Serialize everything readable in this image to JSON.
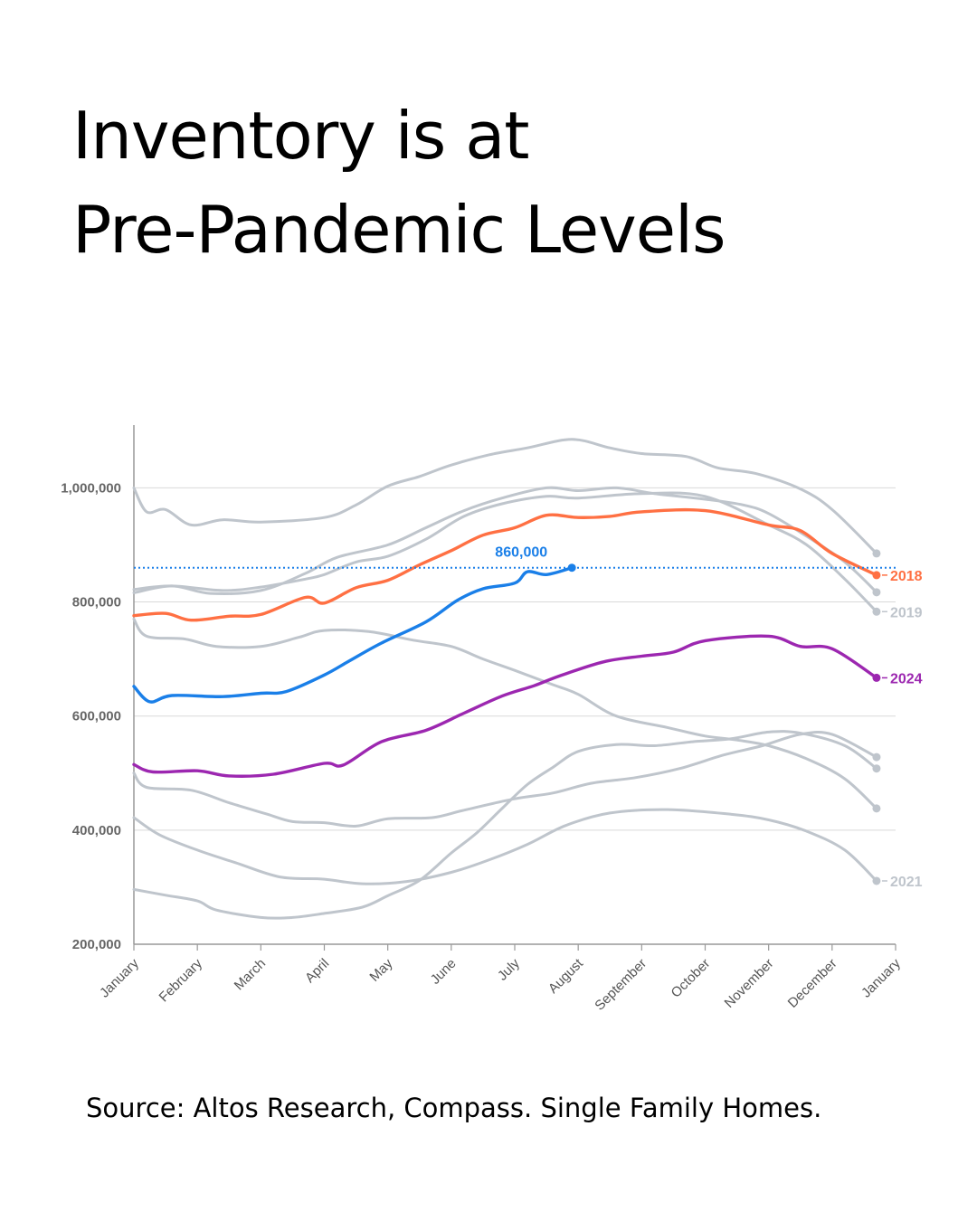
{
  "title_line1": "Inventory is at",
  "title_line2": "Pre-Pandemic Levels",
  "source": "Source: Altos Research, Compass. Single Family Homes.",
  "chart_data": {
    "type": "line",
    "x_label_months": [
      "January",
      "February",
      "March",
      "April",
      "May",
      "June",
      "July",
      "August",
      "September",
      "October",
      "November",
      "December",
      "January"
    ],
    "ylim": [
      200000,
      1110000
    ],
    "y_ticks": [
      200000,
      400000,
      600000,
      800000,
      1000000
    ],
    "y_tick_labels": [
      "200,000",
      "400,000",
      "600,000",
      "800,000",
      "1,000,000"
    ],
    "grid": true,
    "reference_line": {
      "value": 860000,
      "label": "860,000",
      "color": "#1a7fe8",
      "style": "dotted"
    },
    "colors": {
      "highlight_2018": "#ff7043",
      "highlight_2024": "#9c27b0",
      "current": "#1a7fe8",
      "other": "#bfc5cc"
    },
    "series": [
      {
        "name": "",
        "color": "#1a7fe8",
        "role": "current",
        "points": [
          [
            0,
            652000
          ],
          [
            0.25,
            625000
          ],
          [
            0.6,
            636000
          ],
          [
            1.4,
            634000
          ],
          [
            2,
            640000
          ],
          [
            2.4,
            643000
          ],
          [
            3,
            672000
          ],
          [
            3.4,
            697000
          ],
          [
            3.9,
            728000
          ],
          [
            4.6,
            765000
          ],
          [
            5.1,
            803000
          ],
          [
            5.5,
            823000
          ],
          [
            6,
            833000
          ],
          [
            6.2,
            853000
          ],
          [
            6.5,
            848000
          ],
          [
            6.9,
            860000
          ]
        ]
      },
      {
        "name": "2018",
        "color": "#ff7043",
        "role": "highlight",
        "label_visible": true,
        "points": [
          [
            0,
            776000
          ],
          [
            0.5,
            780000
          ],
          [
            0.9,
            768000
          ],
          [
            1.5,
            775000
          ],
          [
            2,
            778000
          ],
          [
            2.7,
            808000
          ],
          [
            3,
            798000
          ],
          [
            3.5,
            825000
          ],
          [
            4,
            838000
          ],
          [
            4.5,
            865000
          ],
          [
            5,
            890000
          ],
          [
            5.5,
            917000
          ],
          [
            6,
            930000
          ],
          [
            6.5,
            952000
          ],
          [
            7,
            948000
          ],
          [
            7.5,
            950000
          ],
          [
            8,
            958000
          ],
          [
            9,
            960000
          ],
          [
            10,
            935000
          ],
          [
            10.5,
            925000
          ],
          [
            11,
            885000
          ],
          [
            11.7,
            847000
          ]
        ]
      },
      {
        "name": "2024",
        "color": "#9c27b0",
        "role": "highlight",
        "label_visible": true,
        "points": [
          [
            0,
            515000
          ],
          [
            0.3,
            502000
          ],
          [
            1,
            504000
          ],
          [
            1.5,
            495000
          ],
          [
            2.2,
            498000
          ],
          [
            3,
            517000
          ],
          [
            3.3,
            514000
          ],
          [
            3.9,
            555000
          ],
          [
            4.6,
            575000
          ],
          [
            5.2,
            605000
          ],
          [
            5.8,
            635000
          ],
          [
            6.3,
            653000
          ],
          [
            6.7,
            670000
          ],
          [
            7.4,
            695000
          ],
          [
            8,
            705000
          ],
          [
            8.5,
            712000
          ],
          [
            9,
            732000
          ],
          [
            10,
            740000
          ],
          [
            10.5,
            722000
          ],
          [
            11,
            718000
          ],
          [
            11.7,
            667000
          ]
        ]
      },
      {
        "name": "2019",
        "color": "#bfc5cc",
        "role": "other",
        "label_visible": true,
        "points": [
          [
            0,
            822000
          ],
          [
            0.6,
            828000
          ],
          [
            1.4,
            820000
          ],
          [
            2,
            826000
          ],
          [
            2.7,
            840000
          ],
          [
            3,
            848000
          ],
          [
            3.5,
            870000
          ],
          [
            4,
            880000
          ],
          [
            4.6,
            910000
          ],
          [
            5.2,
            950000
          ],
          [
            5.8,
            972000
          ],
          [
            6.5,
            985000
          ],
          [
            7,
            982000
          ],
          [
            8,
            990000
          ],
          [
            9,
            985000
          ],
          [
            10,
            935000
          ],
          [
            10.6,
            900000
          ],
          [
            11.2,
            840000
          ],
          [
            11.7,
            783000
          ]
        ]
      },
      {
        "name": "2021",
        "color": "#bfc5cc",
        "role": "other",
        "label_visible": true,
        "points": [
          [
            0,
            422000
          ],
          [
            0.4,
            392000
          ],
          [
            1,
            365000
          ],
          [
            1.6,
            343000
          ],
          [
            2.3,
            318000
          ],
          [
            3,
            314000
          ],
          [
            3.6,
            306000
          ],
          [
            4.3,
            310000
          ],
          [
            5,
            326000
          ],
          [
            5.6,
            348000
          ],
          [
            6.2,
            375000
          ],
          [
            6.8,
            408000
          ],
          [
            7.5,
            430000
          ],
          [
            8.4,
            436000
          ],
          [
            9.4,
            428000
          ],
          [
            10,
            418000
          ],
          [
            10.6,
            398000
          ],
          [
            11.2,
            365000
          ],
          [
            11.7,
            311000
          ]
        ]
      },
      {
        "name": "",
        "color": "#bfc5cc",
        "role": "other",
        "points": [
          [
            0,
            1000000
          ],
          [
            0.2,
            958000
          ],
          [
            0.5,
            962000
          ],
          [
            0.9,
            935000
          ],
          [
            1.4,
            944000
          ],
          [
            2,
            940000
          ],
          [
            3,
            948000
          ],
          [
            3.5,
            970000
          ],
          [
            4,
            1003000
          ],
          [
            4.5,
            1020000
          ],
          [
            5,
            1040000
          ],
          [
            5.6,
            1058000
          ],
          [
            6.2,
            1070000
          ],
          [
            6.9,
            1085000
          ],
          [
            7.5,
            1070000
          ],
          [
            8,
            1060000
          ],
          [
            8.7,
            1055000
          ],
          [
            9.2,
            1035000
          ],
          [
            9.8,
            1025000
          ],
          [
            10.5,
            998000
          ],
          [
            11,
            962000
          ],
          [
            11.7,
            885000
          ]
        ]
      },
      {
        "name": "",
        "color": "#bfc5cc",
        "role": "other",
        "points": [
          [
            0,
            816000
          ],
          [
            0.6,
            828000
          ],
          [
            1.2,
            815000
          ],
          [
            2,
            820000
          ],
          [
            2.7,
            850000
          ],
          [
            3.2,
            878000
          ],
          [
            4,
            900000
          ],
          [
            4.6,
            930000
          ],
          [
            5.2,
            960000
          ],
          [
            5.8,
            982000
          ],
          [
            6.5,
            1000000
          ],
          [
            7,
            995000
          ],
          [
            7.6,
            1000000
          ],
          [
            8.2,
            990000
          ],
          [
            9,
            980000
          ],
          [
            9.6,
            970000
          ],
          [
            10,
            955000
          ],
          [
            10.6,
            915000
          ],
          [
            11.2,
            870000
          ],
          [
            11.7,
            817000
          ]
        ]
      },
      {
        "name": "",
        "color": "#bfc5cc",
        "role": "other",
        "points": [
          [
            0,
            770000
          ],
          [
            0.2,
            740000
          ],
          [
            0.8,
            735000
          ],
          [
            1.3,
            722000
          ],
          [
            2,
            722000
          ],
          [
            2.6,
            738000
          ],
          [
            3,
            750000
          ],
          [
            3.7,
            748000
          ],
          [
            4.4,
            733000
          ],
          [
            5,
            722000
          ],
          [
            5.5,
            700000
          ],
          [
            6,
            680000
          ],
          [
            6.6,
            655000
          ],
          [
            7,
            638000
          ],
          [
            7.6,
            600000
          ],
          [
            8.4,
            580000
          ],
          [
            9,
            565000
          ],
          [
            9.5,
            558000
          ],
          [
            10,
            548000
          ],
          [
            10.6,
            525000
          ],
          [
            11.2,
            490000
          ],
          [
            11.7,
            438000
          ]
        ]
      },
      {
        "name": "",
        "color": "#bfc5cc",
        "role": "other",
        "points": [
          [
            0,
            500000
          ],
          [
            0.2,
            475000
          ],
          [
            0.9,
            470000
          ],
          [
            1.5,
            448000
          ],
          [
            2.1,
            428000
          ],
          [
            2.5,
            415000
          ],
          [
            3,
            413000
          ],
          [
            3.5,
            407000
          ],
          [
            4,
            420000
          ],
          [
            4.7,
            422000
          ],
          [
            5.2,
            435000
          ],
          [
            6,
            455000
          ],
          [
            6.6,
            465000
          ],
          [
            7.2,
            482000
          ],
          [
            7.9,
            492000
          ],
          [
            8.6,
            508000
          ],
          [
            9.3,
            532000
          ],
          [
            9.9,
            548000
          ],
          [
            10.5,
            568000
          ],
          [
            11,
            568000
          ],
          [
            11.7,
            528000
          ]
        ]
      },
      {
        "name": "",
        "color": "#bfc5cc",
        "role": "other",
        "points": [
          [
            0,
            296000
          ],
          [
            0.5,
            286000
          ],
          [
            1,
            276000
          ],
          [
            1.3,
            260000
          ],
          [
            2,
            247000
          ],
          [
            2.5,
            247000
          ],
          [
            3,
            254000
          ],
          [
            3.6,
            265000
          ],
          [
            4,
            285000
          ],
          [
            4.5,
            312000
          ],
          [
            5,
            360000
          ],
          [
            5.4,
            395000
          ],
          [
            5.8,
            438000
          ],
          [
            6.2,
            480000
          ],
          [
            6.6,
            510000
          ],
          [
            7,
            538000
          ],
          [
            7.6,
            550000
          ],
          [
            8.2,
            548000
          ],
          [
            8.8,
            555000
          ],
          [
            9.4,
            560000
          ],
          [
            10,
            572000
          ],
          [
            10.5,
            570000
          ],
          [
            11.2,
            548000
          ],
          [
            11.7,
            508000
          ]
        ]
      }
    ]
  }
}
